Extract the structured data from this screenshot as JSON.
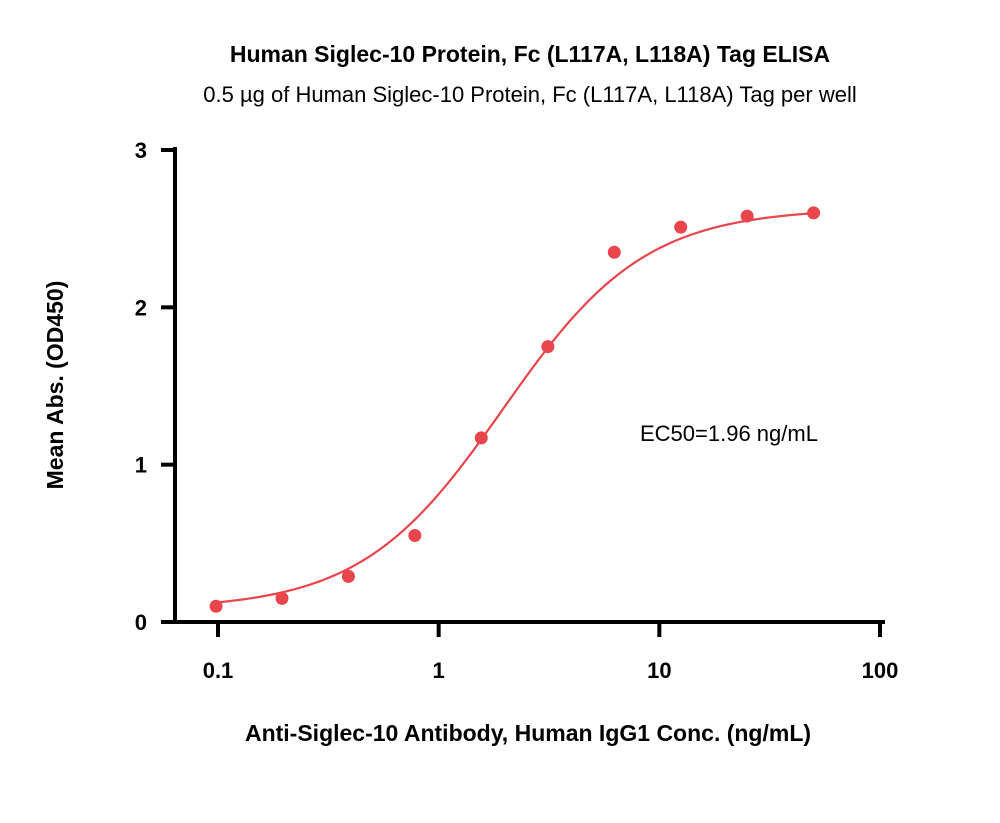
{
  "chart_data": {
    "type": "scatter",
    "title": "Human Siglec-10 Protein, Fc (L117A, L118A) Tag ELISA",
    "subtitle": "0.5 µg of Human Siglec-10 Protein, Fc (L117A, L118A) Tag per well",
    "xlabel": "Anti-Siglec-10 Antibody, Human IgG1 Conc. (ng/mL)",
    "ylabel": "Mean Abs. (OD450)",
    "xscale": "log",
    "xlim": [
      0.06,
      100
    ],
    "ylim": [
      0,
      3
    ],
    "xticks": [
      0.1,
      1,
      10,
      100
    ],
    "xtick_labels": [
      "0.1",
      "1",
      "10",
      "100"
    ],
    "yticks": [
      0,
      1,
      2,
      3
    ],
    "ytick_labels": [
      "0",
      "1",
      "2",
      "3"
    ],
    "grid": false,
    "legend": "none",
    "color": "#e8454d",
    "annotation": "EC50=1.96 ng/mL",
    "points": {
      "x": [
        0.098,
        0.195,
        0.39,
        0.78,
        1.56,
        3.125,
        6.25,
        12.5,
        25,
        50
      ],
      "y": [
        0.1,
        0.15,
        0.29,
        0.55,
        1.17,
        1.75,
        2.35,
        2.51,
        2.58,
        2.6
      ]
    },
    "fit": {
      "model": "4PL",
      "bottom": 0.08,
      "top": 2.63,
      "ec50": 1.96,
      "hill": 1.35
    }
  }
}
